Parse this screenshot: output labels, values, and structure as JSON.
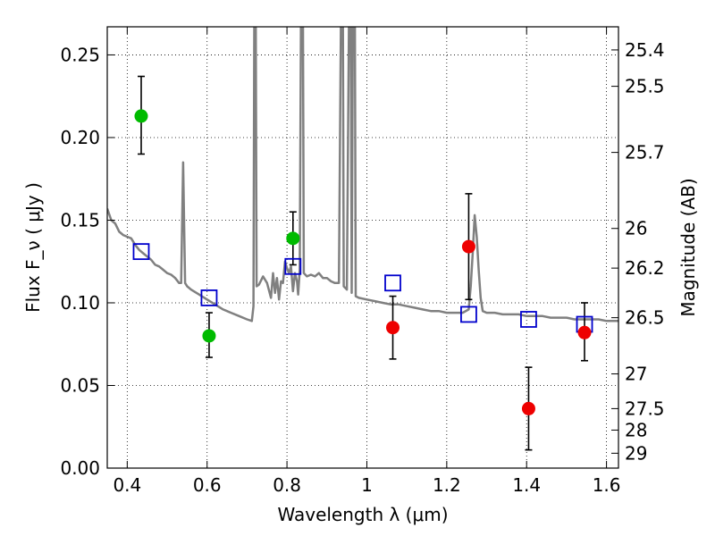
{
  "chart_data": {
    "type": "scatter",
    "xlabel": "Wavelength  λ (μm)",
    "ylabel": "Flux  F_ν  ( μJy )",
    "ylabel_right": "Magnitude (AB)",
    "xlim": [
      0.35,
      1.63
    ],
    "ylim": [
      0.0,
      0.267
    ],
    "grid": true,
    "x_ticks": [
      0.4,
      0.6,
      0.8,
      1.0,
      1.2,
      1.4,
      1.6
    ],
    "x_tick_labels": [
      "0.4",
      "0.6",
      "0.8",
      "1",
      "1.2",
      "1.4",
      "1.6"
    ],
    "y_ticks": [
      0.0,
      0.05,
      0.1,
      0.15,
      0.2,
      0.25
    ],
    "y_tick_labels": [
      "0.00",
      "0.05",
      "0.10",
      "0.15",
      "0.20",
      "0.25"
    ],
    "right_ticks": [
      {
        "label": "25.4",
        "flux": 0.253
      },
      {
        "label": "25.5",
        "flux": 0.231
      },
      {
        "label": "25.7",
        "flux": 0.191
      },
      {
        "label": "26",
        "flux": 0.145
      },
      {
        "label": "26.2",
        "flux": 0.121
      },
      {
        "label": "26.5",
        "flux": 0.091
      },
      {
        "label": "27",
        "flux": 0.057
      },
      {
        "label": "27.5",
        "flux": 0.036
      },
      {
        "label": "28",
        "flux": 0.023
      },
      {
        "label": "29",
        "flux": 0.009
      }
    ],
    "series": [
      {
        "kind": "line",
        "color": "#808080",
        "points": [
          [
            0.35,
            0.157
          ],
          [
            0.36,
            0.15
          ],
          [
            0.37,
            0.148
          ],
          [
            0.38,
            0.143
          ],
          [
            0.39,
            0.141
          ],
          [
            0.4,
            0.14
          ],
          [
            0.41,
            0.139
          ],
          [
            0.42,
            0.135
          ],
          [
            0.43,
            0.132
          ],
          [
            0.44,
            0.13
          ],
          [
            0.45,
            0.128
          ],
          [
            0.46,
            0.126
          ],
          [
            0.47,
            0.123
          ],
          [
            0.48,
            0.122
          ],
          [
            0.49,
            0.12
          ],
          [
            0.5,
            0.118
          ],
          [
            0.51,
            0.117
          ],
          [
            0.52,
            0.115
          ],
          [
            0.53,
            0.112
          ],
          [
            0.535,
            0.112
          ],
          [
            0.54,
            0.185
          ],
          [
            0.545,
            0.112
          ],
          [
            0.55,
            0.11
          ],
          [
            0.56,
            0.108
          ],
          [
            0.58,
            0.105
          ],
          [
            0.6,
            0.102
          ],
          [
            0.62,
            0.099
          ],
          [
            0.64,
            0.096
          ],
          [
            0.66,
            0.094
          ],
          [
            0.68,
            0.092
          ],
          [
            0.7,
            0.09
          ],
          [
            0.712,
            0.089
          ],
          [
            0.716,
            0.098
          ],
          [
            0.718,
            0.267
          ],
          [
            0.722,
            0.267
          ],
          [
            0.724,
            0.11
          ],
          [
            0.73,
            0.111
          ],
          [
            0.74,
            0.116
          ],
          [
            0.75,
            0.112
          ],
          [
            0.76,
            0.103
          ],
          [
            0.765,
            0.118
          ],
          [
            0.77,
            0.106
          ],
          [
            0.775,
            0.115
          ],
          [
            0.78,
            0.102
          ],
          [
            0.785,
            0.113
          ],
          [
            0.79,
            0.112
          ],
          [
            0.795,
            0.125
          ],
          [
            0.8,
            0.121
          ],
          [
            0.805,
            0.118
          ],
          [
            0.81,
            0.122
          ],
          [
            0.815,
            0.107
          ],
          [
            0.82,
            0.118
          ],
          [
            0.825,
            0.113
          ],
          [
            0.828,
            0.105
          ],
          [
            0.832,
            0.12
          ],
          [
            0.835,
            0.267
          ],
          [
            0.84,
            0.267
          ],
          [
            0.842,
            0.118
          ],
          [
            0.85,
            0.116
          ],
          [
            0.86,
            0.117
          ],
          [
            0.87,
            0.116
          ],
          [
            0.88,
            0.118
          ],
          [
            0.89,
            0.115
          ],
          [
            0.9,
            0.115
          ],
          [
            0.91,
            0.113
          ],
          [
            0.92,
            0.112
          ],
          [
            0.93,
            0.112
          ],
          [
            0.935,
            0.267
          ],
          [
            0.94,
            0.267
          ],
          [
            0.942,
            0.11
          ],
          [
            0.95,
            0.108
          ],
          [
            0.955,
            0.267
          ],
          [
            0.96,
            0.267
          ],
          [
            0.962,
            0.106
          ],
          [
            0.965,
            0.267
          ],
          [
            0.97,
            0.267
          ],
          [
            0.972,
            0.104
          ],
          [
            0.98,
            0.103
          ],
          [
            1.0,
            0.102
          ],
          [
            1.02,
            0.101
          ],
          [
            1.04,
            0.1
          ],
          [
            1.06,
            0.099
          ],
          [
            1.08,
            0.099
          ],
          [
            1.1,
            0.098
          ],
          [
            1.12,
            0.097
          ],
          [
            1.14,
            0.096
          ],
          [
            1.16,
            0.095
          ],
          [
            1.18,
            0.095
          ],
          [
            1.2,
            0.094
          ],
          [
            1.22,
            0.094
          ],
          [
            1.24,
            0.094
          ],
          [
            1.255,
            0.096
          ],
          [
            1.26,
            0.11
          ],
          [
            1.265,
            0.13
          ],
          [
            1.27,
            0.153
          ],
          [
            1.275,
            0.14
          ],
          [
            1.28,
            0.12
          ],
          [
            1.285,
            0.103
          ],
          [
            1.29,
            0.095
          ],
          [
            1.3,
            0.094
          ],
          [
            1.32,
            0.094
          ],
          [
            1.34,
            0.093
          ],
          [
            1.36,
            0.093
          ],
          [
            1.38,
            0.093
          ],
          [
            1.4,
            0.092
          ],
          [
            1.42,
            0.092
          ],
          [
            1.44,
            0.092
          ],
          [
            1.46,
            0.091
          ],
          [
            1.48,
            0.091
          ],
          [
            1.5,
            0.091
          ],
          [
            1.52,
            0.09
          ],
          [
            1.54,
            0.09
          ],
          [
            1.56,
            0.09
          ],
          [
            1.58,
            0.09
          ],
          [
            1.6,
            0.089
          ],
          [
            1.63,
            0.089
          ]
        ]
      },
      {
        "kind": "squares",
        "color": "#0000cc",
        "points": [
          [
            0.435,
            0.131
          ],
          [
            0.605,
            0.103
          ],
          [
            0.815,
            0.122
          ],
          [
            1.065,
            0.112
          ],
          [
            1.255,
            0.093
          ],
          [
            1.405,
            0.09
          ],
          [
            1.545,
            0.087
          ]
        ]
      },
      {
        "kind": "circles",
        "color": "#00bb00",
        "points": [
          {
            "x": 0.435,
            "y": 0.213,
            "low": 0.19,
            "high": 0.237
          },
          {
            "x": 0.605,
            "y": 0.08,
            "low": 0.067,
            "high": 0.094
          },
          {
            "x": 0.815,
            "y": 0.139,
            "low": 0.123,
            "high": 0.155
          }
        ]
      },
      {
        "kind": "circles",
        "color": "#ee0000",
        "points": [
          {
            "x": 1.065,
            "y": 0.085,
            "low": 0.066,
            "high": 0.104
          },
          {
            "x": 1.255,
            "y": 0.134,
            "low": 0.102,
            "high": 0.166
          },
          {
            "x": 1.405,
            "y": 0.036,
            "low": 0.011,
            "high": 0.061
          },
          {
            "x": 1.545,
            "y": 0.082,
            "low": 0.065,
            "high": 0.1
          }
        ]
      }
    ]
  }
}
